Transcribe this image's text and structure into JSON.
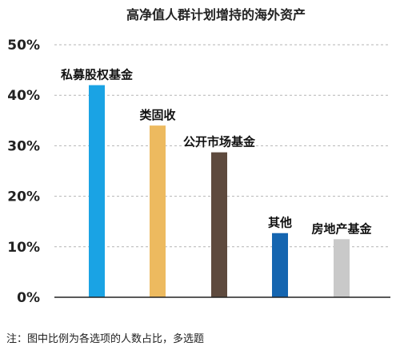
{
  "chart_data": {
    "type": "bar",
    "title": "高净值人群计划增持的海外资产",
    "xlabel": "",
    "ylabel": "",
    "categories": [
      "私募股权基金",
      "类固收",
      "公开市场基金",
      "其他",
      "房地产基金"
    ],
    "values": [
      42,
      34,
      28.7,
      12.7,
      11.5
    ],
    "colors": [
      "#1AA3E4",
      "#EDBA5F",
      "#5E4A3E",
      "#1565B0",
      "#C9C9C9"
    ],
    "ylim": [
      0,
      50
    ],
    "yticks": [
      0,
      10,
      20,
      30,
      40,
      50
    ],
    "ytick_labels": [
      "0%",
      "10%",
      "20%",
      "30%",
      "40%",
      "50%"
    ],
    "grid": "horizontal-dashed",
    "legend": "none"
  },
  "footnote": "注：图中比例为各选项的人数占比，多选题"
}
